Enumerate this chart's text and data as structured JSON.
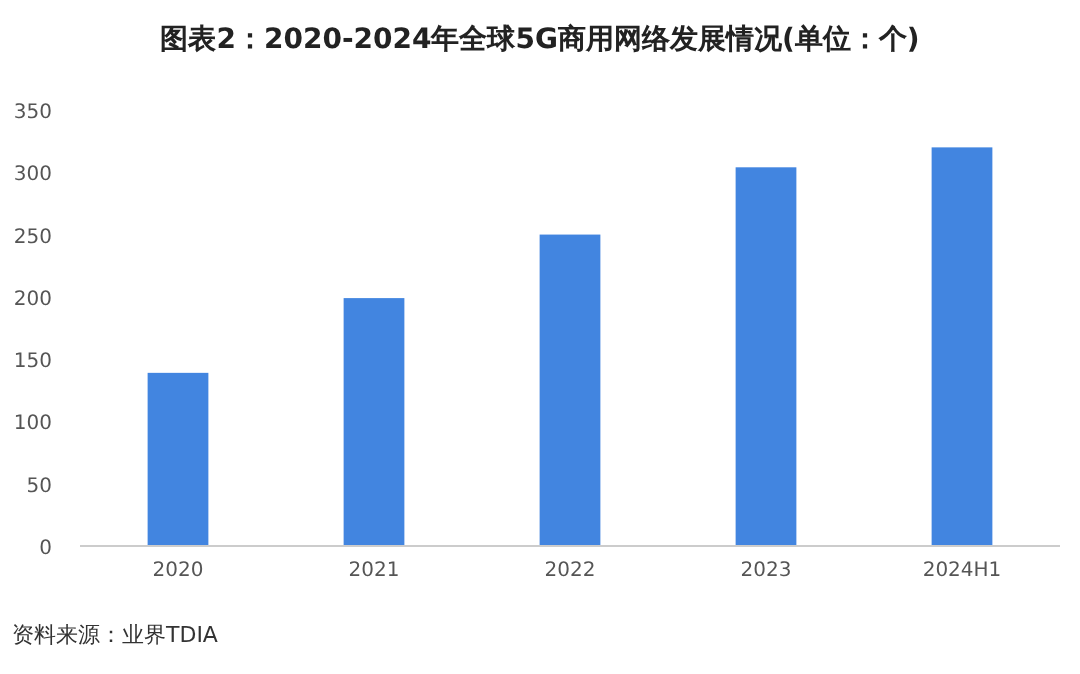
{
  "chart_data": {
    "type": "bar",
    "title": "图表2：2020-2024年全球5G商用网络发展情况(单位：个)",
    "categories": [
      "2020",
      "2021",
      "2022",
      "2023",
      "2024H1"
    ],
    "values": [
      139,
      199,
      250,
      304,
      320
    ],
    "color": "#4285e0",
    "ylim": [
      0,
      350
    ],
    "yticks": [
      0,
      50,
      100,
      150,
      200,
      250,
      300,
      350
    ],
    "grid": false,
    "annotations": [
      "资料来源：业界TDIA"
    ]
  }
}
